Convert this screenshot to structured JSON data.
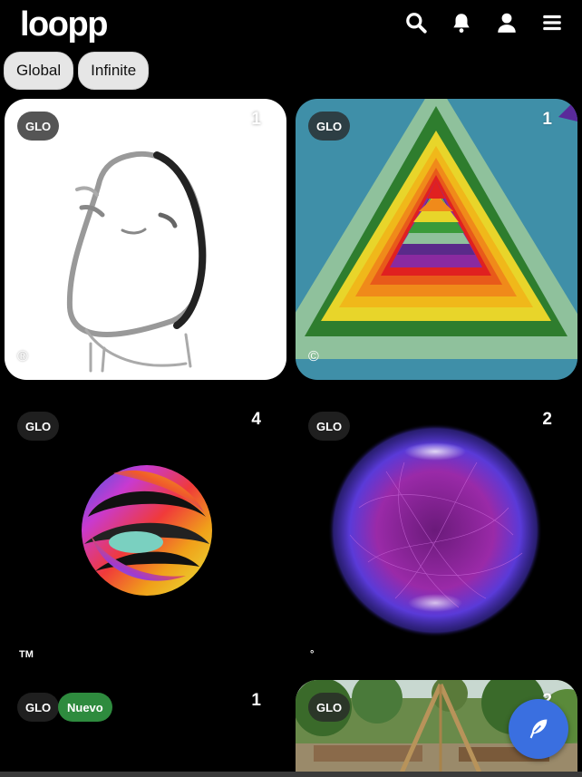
{
  "header": {
    "logo": "loopp",
    "icons": [
      "search-icon",
      "bell-icon",
      "user-icon",
      "menu-icon"
    ]
  },
  "filters": [
    {
      "label": "Global"
    },
    {
      "label": "Infinite"
    }
  ],
  "cards": [
    {
      "badge": "GLO",
      "count": "1",
      "mark": "®"
    },
    {
      "badge": "GLO",
      "count": "1",
      "mark": "©"
    },
    {
      "badge": "GLO",
      "count": "4",
      "mark": "TM"
    },
    {
      "badge": "GLO",
      "count": "2",
      "mark": "°"
    },
    {
      "badge": "GLO",
      "new_label": "Nuevo",
      "count": "1"
    },
    {
      "badge": "GLO",
      "count": "2"
    }
  ],
  "fab": {
    "icon": "feather-icon"
  },
  "colors": {
    "fab": "#3a6fe0",
    "new_badge": "#2e8b3e",
    "background": "#000000"
  }
}
